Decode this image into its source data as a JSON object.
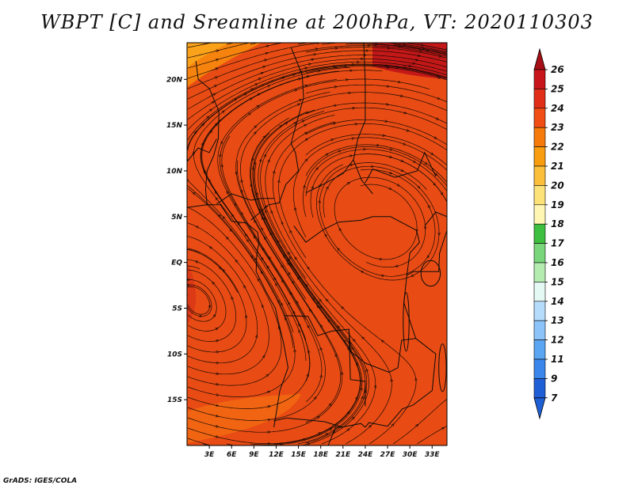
{
  "title": "WBPT [C] and Sreamline at 200hPa, VT: 2020110303",
  "credit": "GrADS: IGES/COLA",
  "map": {
    "lon_range": [
      0,
      35
    ],
    "lat_range": [
      -20,
      24
    ],
    "x_ticks": [
      {
        "value": 3,
        "label": "3E"
      },
      {
        "value": 6,
        "label": "6E"
      },
      {
        "value": 9,
        "label": "9E"
      },
      {
        "value": 12,
        "label": "12E"
      },
      {
        "value": 15,
        "label": "15E"
      },
      {
        "value": 18,
        "label": "18E"
      },
      {
        "value": 21,
        "label": "21E"
      },
      {
        "value": 24,
        "label": "24E"
      },
      {
        "value": 27,
        "label": "27E"
      },
      {
        "value": 30,
        "label": "30E"
      },
      {
        "value": 33,
        "label": "33E"
      }
    ],
    "y_ticks": [
      {
        "value": 20,
        "label": "20N"
      },
      {
        "value": 15,
        "label": "15N"
      },
      {
        "value": 10,
        "label": "10N"
      },
      {
        "value": 5,
        "label": "5N"
      },
      {
        "value": 0,
        "label": "EQ"
      },
      {
        "value": -5,
        "label": "5S"
      },
      {
        "value": -10,
        "label": "10S"
      },
      {
        "value": -15,
        "label": "15S"
      }
    ],
    "field_color": "#e84c14",
    "streamline_color": "#1a0a05",
    "border_color": "#0b0b0b"
  },
  "colorbar": {
    "levels": [
      {
        "label": "26",
        "color": "#a50f15"
      },
      {
        "label": "25",
        "color": "#c8151b"
      },
      {
        "label": "24",
        "color": "#e02e18"
      },
      {
        "label": "23",
        "color": "#f04e14"
      },
      {
        "label": "22",
        "color": "#f57a0a"
      },
      {
        "label": "21",
        "color": "#f89c10"
      },
      {
        "label": "20",
        "color": "#fbbf3c"
      },
      {
        "label": "19",
        "color": "#fde27a"
      },
      {
        "label": "18",
        "color": "#fff6b4"
      },
      {
        "label": "17",
        "color": "#3fbf3f"
      },
      {
        "label": "16",
        "color": "#7ad67a"
      },
      {
        "label": "15",
        "color": "#b4ecb0"
      },
      {
        "label": "14",
        "color": "#e4f8f4"
      },
      {
        "label": "13",
        "color": "#b6dcfc"
      },
      {
        "label": "12",
        "color": "#8cc4fa"
      },
      {
        "label": "11",
        "color": "#5aa6f2"
      },
      {
        "label": "9",
        "color": "#3a86ea"
      },
      {
        "label": "7",
        "color": "#1f5fd6"
      }
    ],
    "top_arrow_color": "#a50f15",
    "bottom_arrow_color": "#1f5fd6"
  }
}
